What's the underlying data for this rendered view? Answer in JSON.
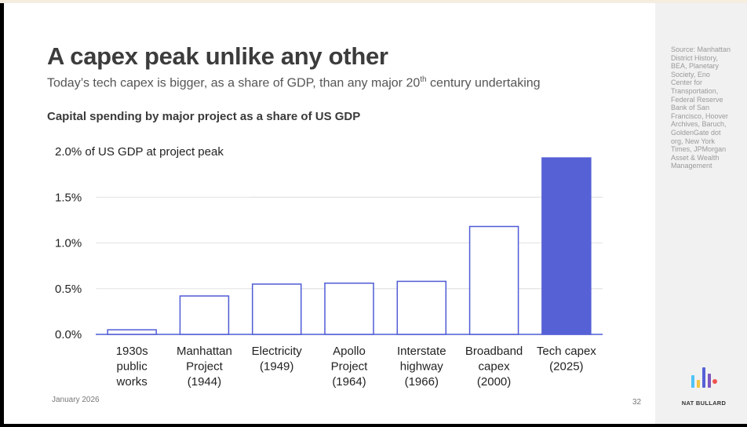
{
  "slide": {
    "title": "A capex peak unlike any other",
    "subtitle_before": "Today’s tech capex is bigger, as a share of GDP, than any major 20",
    "subtitle_sup": "th",
    "subtitle_after": " century undertaking",
    "chart_heading": "Capital spending by major project as a share of US GDP",
    "date": "January 2026",
    "page_number": "32"
  },
  "sidebar": {
    "source": "Source: Manhattan District History, BEA, Planetary Society, Eno Center for Transportation, Federal Reserve Bank of San Francisco, Hoover Archives, Baruch, GoldenGate dot org, New York Times, JPMorgan Asset & Wealth Management",
    "brand": "NAT BULLARD",
    "logo_icon": "bar-chart-logo-icon"
  },
  "colors": {
    "bar_outline": "#4f5bd5",
    "highlight_bar": "#5661d6",
    "text": "#222222",
    "grid": "#e3e3e3"
  },
  "chart_data": {
    "type": "bar",
    "categories": [
      [
        "1930s",
        "public",
        "works"
      ],
      [
        "Manhattan",
        "Project",
        "(1944)"
      ],
      [
        "Electricity",
        "(1949)"
      ],
      [
        "Apollo",
        "Project",
        "(1964)"
      ],
      [
        "Interstate",
        "highway",
        "(1966)"
      ],
      [
        "Broadband",
        "capex",
        "(2000)"
      ],
      [
        "Tech capex",
        "(2025)"
      ]
    ],
    "values": [
      0.05,
      0.42,
      0.55,
      0.56,
      0.58,
      1.18,
      1.93
    ],
    "highlight_index": 6,
    "ylim": [
      0,
      2.0
    ],
    "yticks": [
      0,
      0.5,
      1.0,
      1.5,
      2.0
    ],
    "ytick_labels": [
      "0.0%",
      "0.5%",
      "1.0%",
      "1.5%",
      "2.0% of US GDP at project peak"
    ],
    "grid": true
  }
}
